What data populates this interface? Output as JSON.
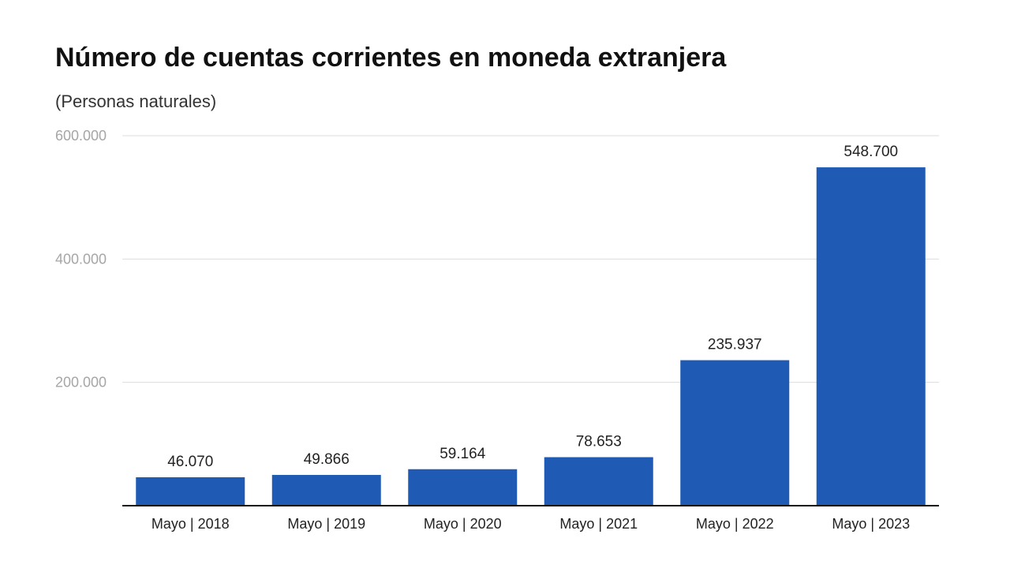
{
  "header": {
    "title": "Número de cuentas corrientes en moneda extranjera",
    "subtitle": "(Personas naturales)"
  },
  "colors": {
    "bar": "#1f5bb5",
    "grid": "#dddddd",
    "axis": "#111111"
  },
  "chart_data": {
    "type": "bar",
    "title": "Número de cuentas corrientes en moneda extranjera",
    "subtitle": "(Personas naturales)",
    "xlabel": "",
    "ylabel": "",
    "categories": [
      "Mayo | 2018",
      "Mayo | 2019",
      "Mayo | 2020",
      "Mayo | 2021",
      "Mayo | 2022",
      "Mayo | 2023"
    ],
    "values": [
      46070,
      49866,
      59164,
      78653,
      235937,
      548700
    ],
    "value_labels": [
      "46.070",
      "49.866",
      "59.164",
      "78.653",
      "235.937",
      "548.700"
    ],
    "ylim": [
      0,
      600000
    ],
    "yticks": [
      200000,
      400000,
      600000
    ],
    "ytick_labels": [
      "200.000",
      "400.000",
      "600.000"
    ],
    "grid": true,
    "legend": "none"
  }
}
